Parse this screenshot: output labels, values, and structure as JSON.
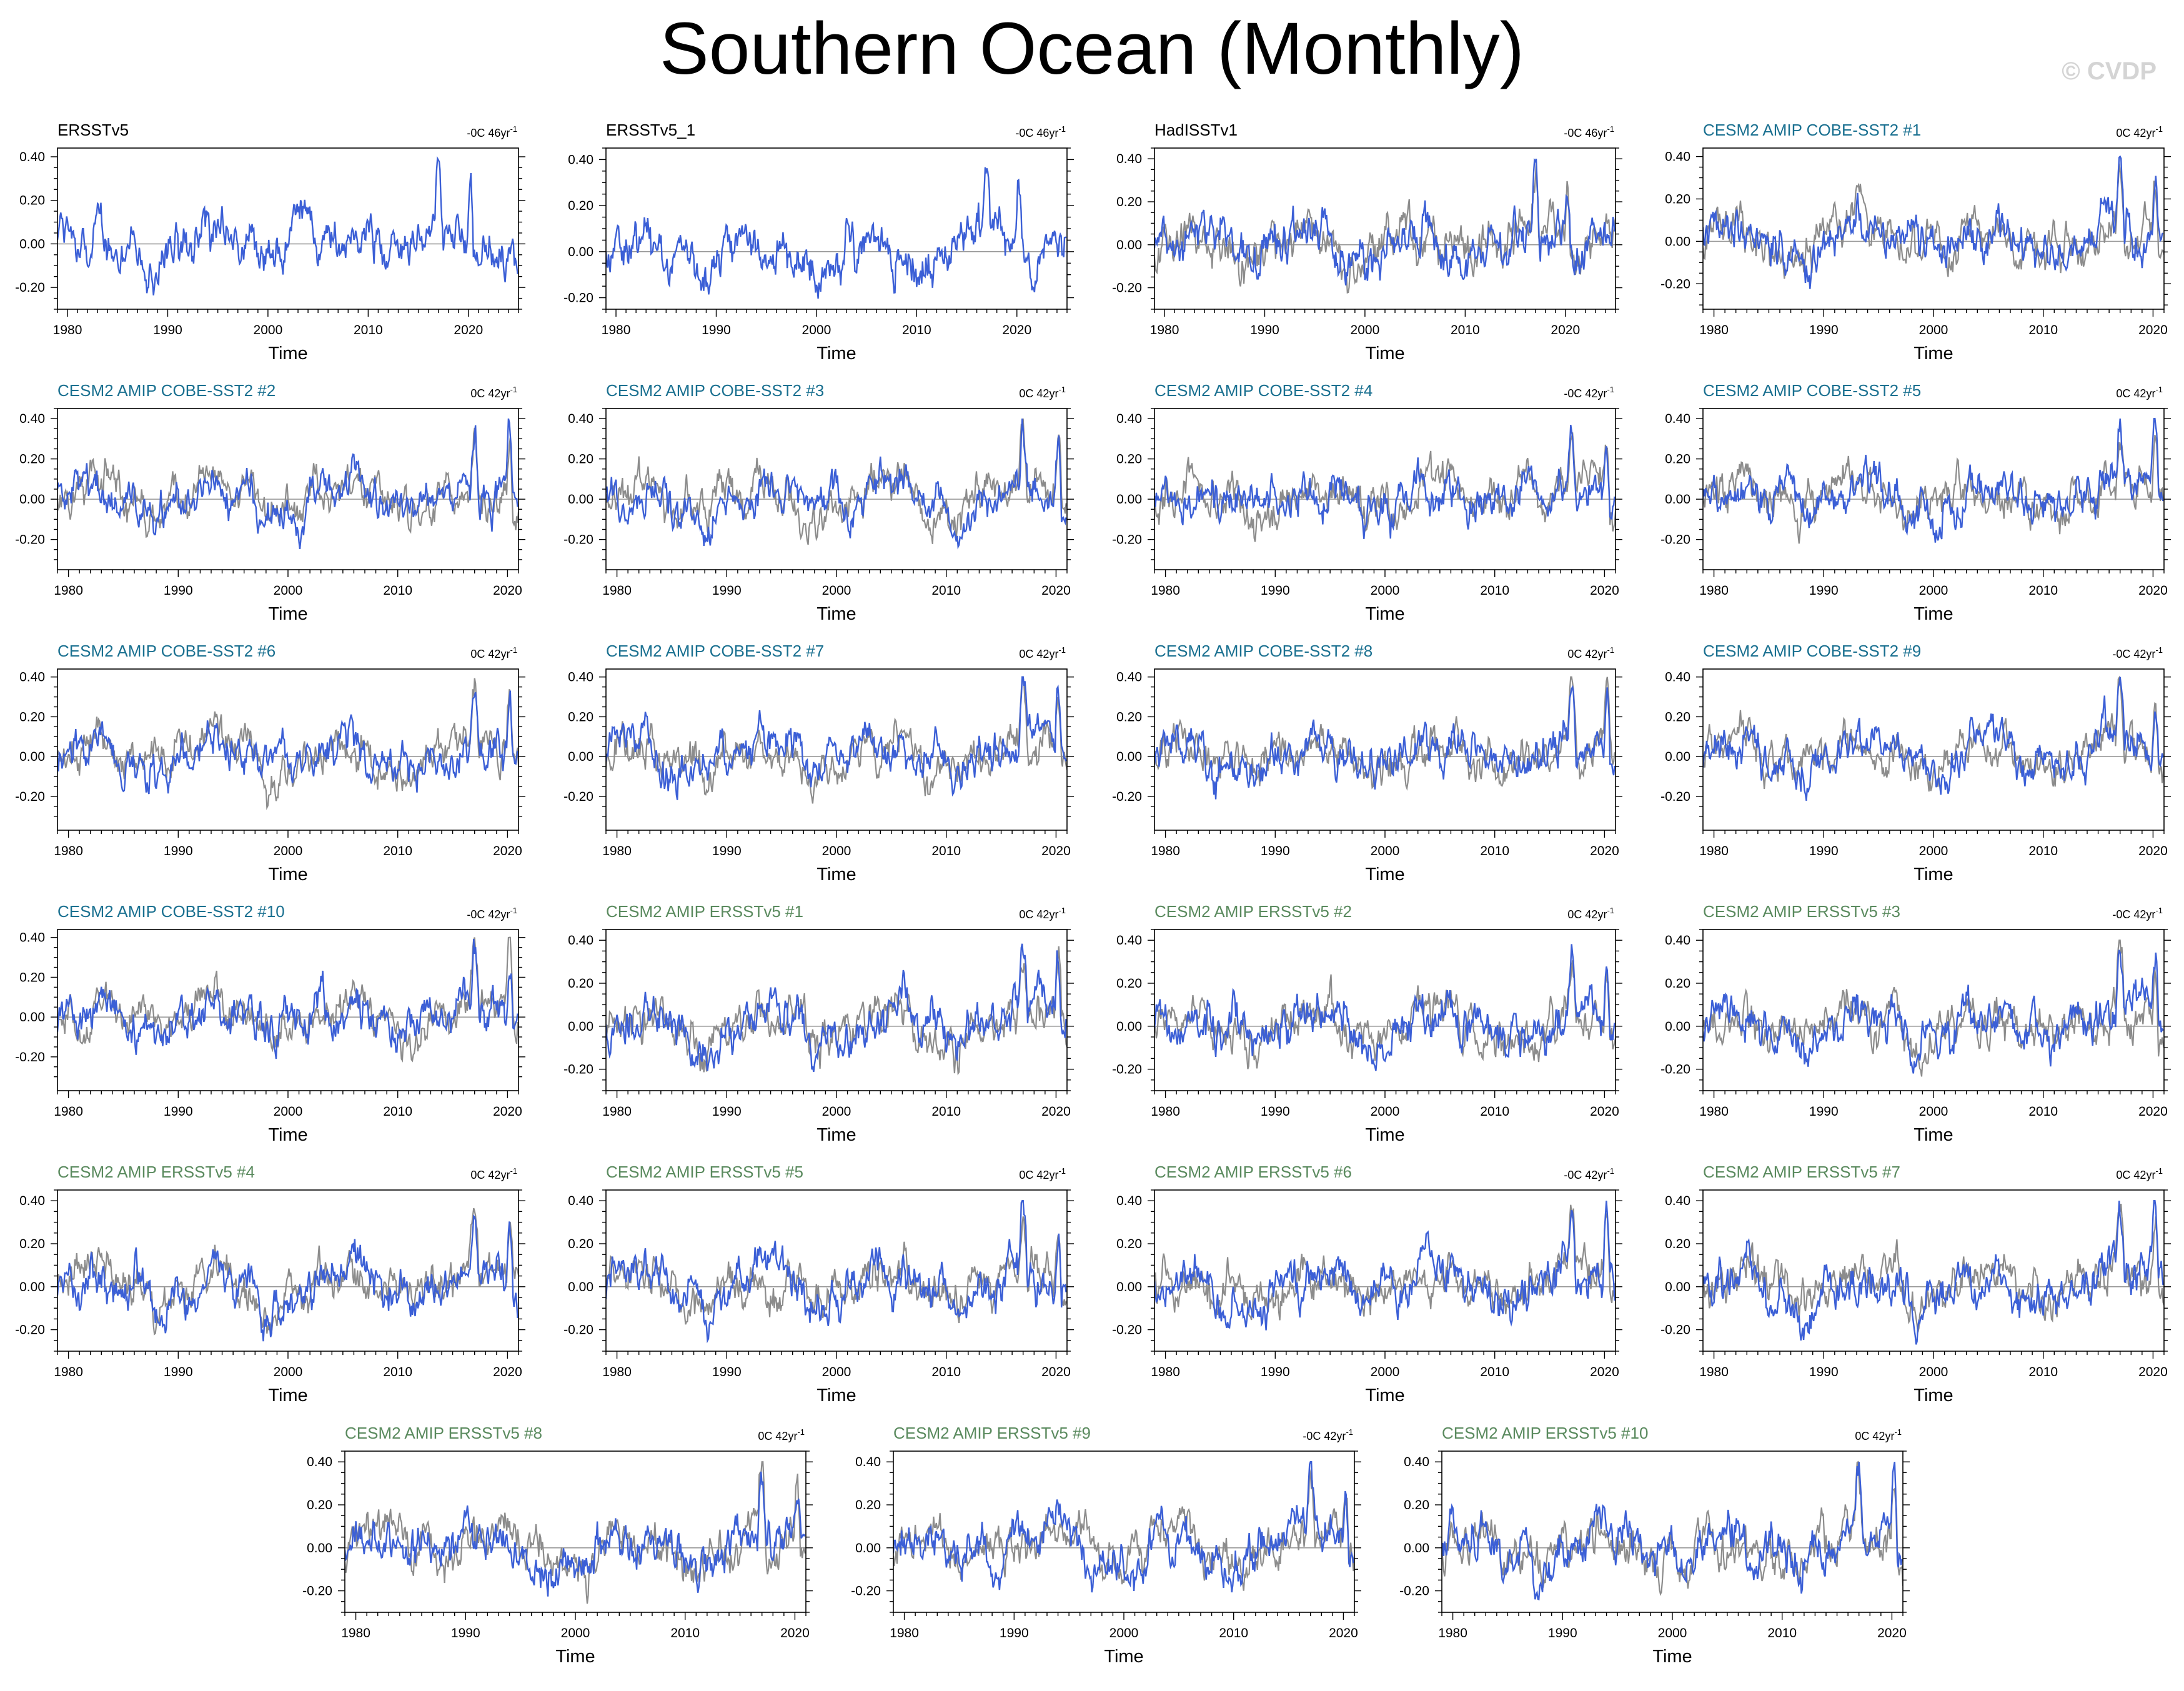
{
  "title": "Southern Ocean (Monthly)",
  "watermark": "© CVDP",
  "colors": {
    "series_line": "#3b5fd6",
    "reference_line": "#8c8c8c",
    "zero_line": "#9a9a9a",
    "title_observed": "#000000",
    "title_cobe": "#1a7090",
    "title_ersst": "#5a8a5e"
  },
  "chart_data": [
    {
      "type": "line",
      "title": "ERSSTv5",
      "title_group": "observed",
      "trend": "-0C 46yr",
      "trend_exp": "-1",
      "xlabel": "Time",
      "ylabel": "",
      "x_ticks": [
        1980,
        1990,
        2000,
        2010,
        2020
      ],
      "y_ticks": [
        "0.40",
        "0.20",
        "0.00",
        "-0.20"
      ],
      "xlim": [
        1979,
        2025
      ],
      "ylim": [
        -0.3,
        0.44
      ],
      "grid": false,
      "series": [
        {
          "values_note": "monthly",
          "start": 1979,
          "end": 2024.9
        }
      ],
      "reference": false
    },
    {
      "type": "line",
      "title": "ERSSTv5_1",
      "title_group": "observed",
      "trend": "-0C 46yr",
      "trend_exp": "-1",
      "xlabel": "Time",
      "ylabel": "",
      "x_ticks": [
        1980,
        1990,
        2000,
        2010,
        2020
      ],
      "y_ticks": [
        "0.40",
        "0.20",
        "0.00",
        "-0.20"
      ],
      "xlim": [
        1979,
        2025
      ],
      "ylim": [
        -0.25,
        0.45
      ],
      "grid": false,
      "reference": false
    },
    {
      "type": "line",
      "title": "HadISSTv1",
      "title_group": "observed",
      "trend": "-0C 46yr",
      "trend_exp": "-1",
      "xlabel": "Time",
      "ylabel": "",
      "x_ticks": [
        1980,
        1990,
        2000,
        2010,
        2020
      ],
      "y_ticks": [
        "0.40",
        "0.20",
        "0.00",
        "-0.20"
      ],
      "xlim": [
        1979,
        2025
      ],
      "ylim": [
        -0.3,
        0.45
      ],
      "grid": false,
      "reference": true
    },
    {
      "type": "line",
      "title": "CESM2 AMIP COBE-SST2 #1",
      "title_group": "cobe",
      "trend": "0C 42yr",
      "trend_exp": "-1",
      "xlabel": "Time",
      "ylabel": "",
      "x_ticks": [
        1980,
        1990,
        2000,
        2010,
        2020
      ],
      "y_ticks": [
        "0.40",
        "0.20",
        "0.00",
        "-0.20"
      ],
      "xlim": [
        1979,
        2021
      ],
      "ylim": [
        -0.32,
        0.44
      ],
      "grid": false,
      "reference": true
    },
    {
      "type": "line",
      "title": "CESM2 AMIP COBE-SST2 #2",
      "title_group": "cobe",
      "trend": "0C 42yr",
      "trend_exp": "-1",
      "xlabel": "Time",
      "ylabel": "",
      "x_ticks": [
        1980,
        1990,
        2000,
        2010,
        2020
      ],
      "y_ticks": [
        "0.40",
        "0.20",
        "0.00",
        "-0.20"
      ],
      "xlim": [
        1979,
        2021
      ],
      "ylim": [
        -0.35,
        0.45
      ],
      "grid": false,
      "reference": true
    },
    {
      "type": "line",
      "title": "CESM2 AMIP COBE-SST2 #3",
      "title_group": "cobe",
      "trend": "0C 42yr",
      "trend_exp": "-1",
      "xlabel": "Time",
      "ylabel": "",
      "x_ticks": [
        1980,
        1990,
        2000,
        2010,
        2020
      ],
      "y_ticks": [
        "0.40",
        "0.20",
        "0.00",
        "-0.20"
      ],
      "xlim": [
        1979,
        2021
      ],
      "ylim": [
        -0.35,
        0.45
      ],
      "grid": false,
      "reference": true
    },
    {
      "type": "line",
      "title": "CESM2 AMIP COBE-SST2 #4",
      "title_group": "cobe",
      "trend": "-0C 42yr",
      "trend_exp": "-1",
      "xlabel": "Time",
      "ylabel": "",
      "x_ticks": [
        1980,
        1990,
        2000,
        2010,
        2020
      ],
      "y_ticks": [
        "0.40",
        "0.20",
        "0.00",
        "-0.20"
      ],
      "xlim": [
        1979,
        2021
      ],
      "ylim": [
        -0.35,
        0.45
      ],
      "grid": false,
      "reference": true
    },
    {
      "type": "line",
      "title": "CESM2 AMIP COBE-SST2 #5",
      "title_group": "cobe",
      "trend": "0C 42yr",
      "trend_exp": "-1",
      "xlabel": "Time",
      "ylabel": "",
      "x_ticks": [
        1980,
        1990,
        2000,
        2010,
        2020
      ],
      "y_ticks": [
        "0.40",
        "0.20",
        "0.00",
        "-0.20"
      ],
      "xlim": [
        1979,
        2021
      ],
      "ylim": [
        -0.35,
        0.45
      ],
      "grid": false,
      "reference": true
    },
    {
      "type": "line",
      "title": "CESM2 AMIP COBE-SST2 #6",
      "title_group": "cobe",
      "trend": "0C 42yr",
      "trend_exp": "-1",
      "xlabel": "Time",
      "ylabel": "",
      "x_ticks": [
        1980,
        1990,
        2000,
        2010,
        2020
      ],
      "y_ticks": [
        "0.40",
        "0.20",
        "0.00",
        "-0.20"
      ],
      "xlim": [
        1979,
        2021
      ],
      "ylim": [
        -0.37,
        0.44
      ],
      "grid": false,
      "reference": true
    },
    {
      "type": "line",
      "title": "CESM2 AMIP COBE-SST2 #7",
      "title_group": "cobe",
      "trend": "0C 42yr",
      "trend_exp": "-1",
      "xlabel": "Time",
      "ylabel": "",
      "x_ticks": [
        1980,
        1990,
        2000,
        2010,
        2020
      ],
      "y_ticks": [
        "0.40",
        "0.20",
        "0.00",
        "-0.20"
      ],
      "xlim": [
        1979,
        2021
      ],
      "ylim": [
        -0.37,
        0.44
      ],
      "grid": false,
      "reference": true
    },
    {
      "type": "line",
      "title": "CESM2 AMIP COBE-SST2 #8",
      "title_group": "cobe",
      "trend": "0C 42yr",
      "trend_exp": "-1",
      "xlabel": "Time",
      "ylabel": "",
      "x_ticks": [
        1980,
        1990,
        2000,
        2010,
        2020
      ],
      "y_ticks": [
        "0.40",
        "0.20",
        "0.00",
        "-0.20"
      ],
      "xlim": [
        1979,
        2021
      ],
      "ylim": [
        -0.37,
        0.44
      ],
      "grid": false,
      "reference": true
    },
    {
      "type": "line",
      "title": "CESM2 AMIP COBE-SST2 #9",
      "title_group": "cobe",
      "trend": "-0C 42yr",
      "trend_exp": "-1",
      "xlabel": "Time",
      "ylabel": "",
      "x_ticks": [
        1980,
        1990,
        2000,
        2010,
        2020
      ],
      "y_ticks": [
        "0.40",
        "0.20",
        "0.00",
        "-0.20"
      ],
      "xlim": [
        1979,
        2021
      ],
      "ylim": [
        -0.37,
        0.44
      ],
      "grid": false,
      "reference": true
    },
    {
      "type": "line",
      "title": "CESM2 AMIP COBE-SST2 #10",
      "title_group": "cobe",
      "trend": "-0C 42yr",
      "trend_exp": "-1",
      "xlabel": "Time",
      "ylabel": "",
      "x_ticks": [
        1980,
        1990,
        2000,
        2010,
        2020
      ],
      "y_ticks": [
        "0.40",
        "0.20",
        "0.00",
        "-0.20"
      ],
      "xlim": [
        1979,
        2021
      ],
      "ylim": [
        -0.37,
        0.44
      ],
      "grid": false,
      "reference": true
    },
    {
      "type": "line",
      "title": "CESM2 AMIP ERSSTv5 #1",
      "title_group": "ersst",
      "trend": "0C 42yr",
      "trend_exp": "-1",
      "xlabel": "Time",
      "ylabel": "",
      "x_ticks": [
        1980,
        1990,
        2000,
        2010,
        2020
      ],
      "y_ticks": [
        "0.40",
        "0.20",
        "0.00",
        "-0.20"
      ],
      "xlim": [
        1979,
        2021
      ],
      "ylim": [
        -0.3,
        0.45
      ],
      "grid": false,
      "reference": true
    },
    {
      "type": "line",
      "title": "CESM2 AMIP ERSSTv5 #2",
      "title_group": "ersst",
      "trend": "0C 42yr",
      "trend_exp": "-1",
      "xlabel": "Time",
      "ylabel": "",
      "x_ticks": [
        1980,
        1990,
        2000,
        2010,
        2020
      ],
      "y_ticks": [
        "0.40",
        "0.20",
        "0.00",
        "-0.20"
      ],
      "xlim": [
        1979,
        2021
      ],
      "ylim": [
        -0.3,
        0.45
      ],
      "grid": false,
      "reference": true
    },
    {
      "type": "line",
      "title": "CESM2 AMIP ERSSTv5 #3",
      "title_group": "ersst",
      "trend": "-0C 42yr",
      "trend_exp": "-1",
      "xlabel": "Time",
      "ylabel": "",
      "x_ticks": [
        1980,
        1990,
        2000,
        2010,
        2020
      ],
      "y_ticks": [
        "0.40",
        "0.20",
        "0.00",
        "-0.20"
      ],
      "xlim": [
        1979,
        2021
      ],
      "ylim": [
        -0.3,
        0.45
      ],
      "grid": false,
      "reference": true
    },
    {
      "type": "line",
      "title": "CESM2 AMIP ERSSTv5 #4",
      "title_group": "ersst",
      "trend": "0C 42yr",
      "trend_exp": "-1",
      "xlabel": "Time",
      "ylabel": "",
      "x_ticks": [
        1980,
        1990,
        2000,
        2010,
        2020
      ],
      "y_ticks": [
        "0.40",
        "0.20",
        "0.00",
        "-0.20"
      ],
      "xlim": [
        1979,
        2021
      ],
      "ylim": [
        -0.3,
        0.45
      ],
      "grid": false,
      "reference": true
    },
    {
      "type": "line",
      "title": "CESM2 AMIP ERSSTv5 #5",
      "title_group": "ersst",
      "trend": "0C 42yr",
      "trend_exp": "-1",
      "xlabel": "Time",
      "ylabel": "",
      "x_ticks": [
        1980,
        1990,
        2000,
        2010,
        2020
      ],
      "y_ticks": [
        "0.40",
        "0.20",
        "0.00",
        "-0.20"
      ],
      "xlim": [
        1979,
        2021
      ],
      "ylim": [
        -0.3,
        0.45
      ],
      "grid": false,
      "reference": true
    },
    {
      "type": "line",
      "title": "CESM2 AMIP ERSSTv5 #6",
      "title_group": "ersst",
      "trend": "-0C 42yr",
      "trend_exp": "-1",
      "xlabel": "Time",
      "ylabel": "",
      "x_ticks": [
        1980,
        1990,
        2000,
        2010,
        2020
      ],
      "y_ticks": [
        "0.40",
        "0.20",
        "0.00",
        "-0.20"
      ],
      "xlim": [
        1979,
        2021
      ],
      "ylim": [
        -0.3,
        0.45
      ],
      "grid": false,
      "reference": true
    },
    {
      "type": "line",
      "title": "CESM2 AMIP ERSSTv5 #7",
      "title_group": "ersst",
      "trend": "0C 42yr",
      "trend_exp": "-1",
      "xlabel": "Time",
      "ylabel": "",
      "x_ticks": [
        1980,
        1990,
        2000,
        2010,
        2020
      ],
      "y_ticks": [
        "0.40",
        "0.20",
        "0.00",
        "-0.20"
      ],
      "xlim": [
        1979,
        2021
      ],
      "ylim": [
        -0.3,
        0.45
      ],
      "grid": false,
      "reference": true
    },
    {
      "type": "line",
      "title": "CESM2 AMIP ERSSTv5 #8",
      "title_group": "ersst",
      "trend": "0C 42yr",
      "trend_exp": "-1",
      "xlabel": "Time",
      "ylabel": "",
      "x_ticks": [
        1980,
        1990,
        2000,
        2010,
        2020
      ],
      "y_ticks": [
        "0.40",
        "0.20",
        "0.00",
        "-0.20"
      ],
      "xlim": [
        1979,
        2021
      ],
      "ylim": [
        -0.3,
        0.45
      ],
      "grid": false,
      "reference": true
    },
    {
      "type": "line",
      "title": "CESM2 AMIP ERSSTv5 #9",
      "title_group": "ersst",
      "trend": "-0C 42yr",
      "trend_exp": "-1",
      "xlabel": "Time",
      "ylabel": "",
      "x_ticks": [
        1980,
        1990,
        2000,
        2010,
        2020
      ],
      "y_ticks": [
        "0.40",
        "0.20",
        "0.00",
        "-0.20"
      ],
      "xlim": [
        1979,
        2021
      ],
      "ylim": [
        -0.3,
        0.45
      ],
      "grid": false,
      "reference": true
    },
    {
      "type": "line",
      "title": "CESM2 AMIP ERSSTv5 #10",
      "title_group": "ersst",
      "trend": "0C 42yr",
      "trend_exp": "-1",
      "xlabel": "Time",
      "ylabel": "",
      "x_ticks": [
        1980,
        1990,
        2000,
        2010,
        2020
      ],
      "y_ticks": [
        "0.40",
        "0.20",
        "0.00",
        "-0.20"
      ],
      "xlim": [
        1979,
        2021
      ],
      "ylim": [
        -0.3,
        0.45
      ],
      "grid": false,
      "reference": true
    }
  ]
}
